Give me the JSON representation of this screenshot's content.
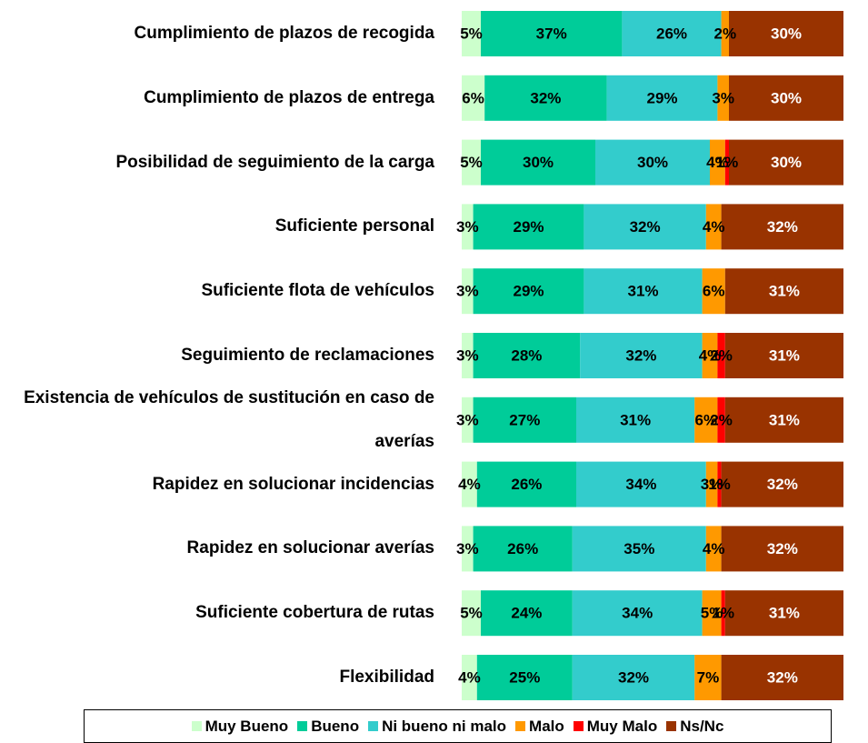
{
  "chart_data": {
    "type": "stacked-bar-horizontal",
    "categories": [
      "Cumplimiento de plazos de recogida",
      "Cumplimiento de plazos de entrega",
      "Posibilidad de seguimiento de la carga",
      "Suficiente personal",
      "Suficiente flota de vehículos",
      "Seguimiento de reclamaciones",
      "Existencia de vehículos de sustitución en caso de averías",
      "Rapidez en solucionar incidencias",
      "Rapidez en solucionar averías",
      "Suficiente cobertura de rutas",
      "Flexibilidad"
    ],
    "xlim": [
      0,
      100
    ],
    "series": [
      {
        "name": "Muy Bueno",
        "color": "#ccffcc",
        "values": [
          5,
          6,
          5,
          3,
          3,
          3,
          3,
          4,
          3,
          5,
          4
        ],
        "value_labels": [
          "5%",
          "6%",
          "5%",
          "3%",
          "3%",
          "3%",
          "3%",
          "4%",
          "3%",
          "5%",
          "4%"
        ]
      },
      {
        "name": "Bueno",
        "color": "#00cc99",
        "values": [
          37,
          32,
          30,
          29,
          29,
          28,
          27,
          26,
          26,
          24,
          25
        ],
        "value_labels": [
          "37%",
          "32%",
          "30%",
          "29%",
          "29%",
          "28%",
          "27%",
          "26%",
          "26%",
          "24%",
          "25%"
        ]
      },
      {
        "name": "Ni bueno ni malo",
        "color": "#33cccc",
        "values": [
          26,
          29,
          30,
          32,
          31,
          32,
          31,
          34,
          35,
          34,
          32
        ],
        "value_labels": [
          "26%",
          "29%",
          "30%",
          "32%",
          "31%",
          "32%",
          "31%",
          "34%",
          "35%",
          "34%",
          "32%"
        ]
      },
      {
        "name": "Malo",
        "color": "#ff9900",
        "values": [
          2,
          3,
          4,
          4,
          6,
          4,
          6,
          3,
          4,
          5,
          7
        ],
        "value_labels": [
          "2%",
          "3%",
          "4%",
          "4%",
          "6%",
          "4%",
          "6%",
          "3%",
          "4%",
          "5%",
          "7%"
        ]
      },
      {
        "name": "Muy Malo",
        "color": "#ff0000",
        "values": [
          null,
          null,
          1,
          null,
          null,
          2,
          2,
          1,
          null,
          1,
          null
        ],
        "value_labels": [
          null,
          null,
          "1%",
          null,
          null,
          "2%",
          "2%",
          "1%",
          null,
          "1%",
          null
        ]
      },
      {
        "name": "Ns/Nc",
        "color": "#993300",
        "values": [
          30,
          30,
          30,
          32,
          31,
          31,
          31,
          32,
          32,
          31,
          32
        ],
        "value_labels": [
          "30%",
          "30%",
          "30%",
          "32%",
          "31%",
          "31%",
          "31%",
          "32%",
          "32%",
          "31%",
          "32%"
        ]
      }
    ]
  }
}
